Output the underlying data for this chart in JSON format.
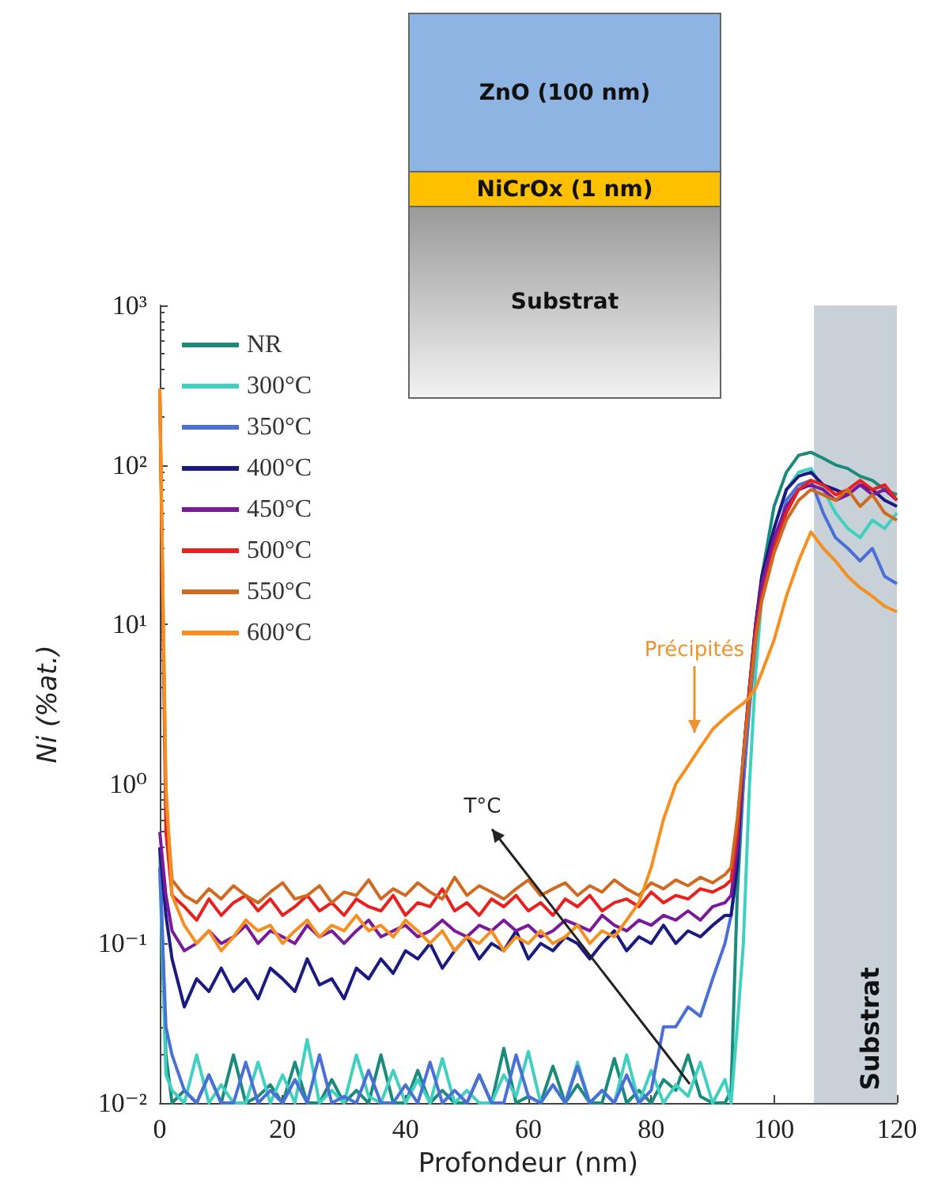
{
  "chart_data": {
    "type": "line",
    "xlabel": "Profondeur (nm)",
    "ylabel": "Ni (%at.)",
    "log": "y",
    "legend": "top left",
    "marker": "none",
    "grid": false,
    "xlim": [
      0,
      120
    ],
    "xticks": [
      0,
      20,
      40,
      60,
      80,
      100,
      120
    ],
    "ylim": [
      0.01,
      1000
    ],
    "yticks": [
      {
        "value": 0.01,
        "label": "10⁻²"
      },
      {
        "value": 0.1,
        "label": "10⁻¹"
      },
      {
        "value": 1,
        "label": "10⁰"
      },
      {
        "value": 10,
        "label": "10¹"
      },
      {
        "value": 100,
        "label": "10²"
      },
      {
        "value": 1000,
        "label": "10³"
      }
    ],
    "x": [
      0,
      1,
      2,
      4,
      6,
      8,
      10,
      12,
      14,
      16,
      18,
      20,
      22,
      24,
      26,
      28,
      30,
      32,
      34,
      36,
      38,
      40,
      42,
      44,
      46,
      48,
      50,
      52,
      54,
      56,
      58,
      60,
      62,
      64,
      66,
      68,
      70,
      72,
      74,
      76,
      78,
      80,
      82,
      84,
      86,
      88,
      90,
      92,
      93,
      94,
      95,
      96,
      97,
      98,
      100,
      102,
      104,
      106,
      108,
      110,
      112,
      114,
      116,
      118,
      120
    ],
    "series": [
      {
        "name": "NR",
        "color": "#1a8a7a",
        "values": [
          0.4,
          0.02,
          0.01,
          0.012,
          0.01,
          0.015,
          0.01,
          0.02,
          0.01,
          0.011,
          0.013,
          0.01,
          0.018,
          0.01,
          0.01,
          0.014,
          0.01,
          0.012,
          0.01,
          0.02,
          0.01,
          0.01,
          0.016,
          0.01,
          0.012,
          0.01,
          0.01,
          0.015,
          0.01,
          0.022,
          0.01,
          0.011,
          0.01,
          0.017,
          0.01,
          0.013,
          0.01,
          0.01,
          0.019,
          0.01,
          0.012,
          0.01,
          0.014,
          0.012,
          0.02,
          0.011,
          0.01,
          0.01,
          0.012,
          0.2,
          1,
          4,
          10,
          20,
          55,
          90,
          115,
          120,
          110,
          100,
          95,
          85,
          80,
          70,
          65
        ]
      },
      {
        "name": "300°C",
        "color": "#40d0c0",
        "values": [
          0.3,
          0.015,
          0.012,
          0.01,
          0.02,
          0.01,
          0.013,
          0.01,
          0.01,
          0.018,
          0.01,
          0.015,
          0.01,
          0.025,
          0.01,
          0.012,
          0.01,
          0.02,
          0.011,
          0.01,
          0.016,
          0.01,
          0.014,
          0.01,
          0.019,
          0.01,
          0.012,
          0.01,
          0.01,
          0.015,
          0.011,
          0.021,
          0.01,
          0.013,
          0.01,
          0.018,
          0.01,
          0.012,
          0.01,
          0.02,
          0.01,
          0.016,
          0.01,
          0.013,
          0.011,
          0.018,
          0.01,
          0.014,
          0.01,
          0.03,
          0.1,
          1,
          5,
          15,
          40,
          70,
          90,
          95,
          70,
          50,
          40,
          35,
          45,
          40,
          50
        ]
      },
      {
        "name": "350°C",
        "color": "#4a70d8",
        "values": [
          0.3,
          0.03,
          0.02,
          0.012,
          0.01,
          0.015,
          0.01,
          0.01,
          0.018,
          0.01,
          0.012,
          0.01,
          0.014,
          0.01,
          0.02,
          0.01,
          0.011,
          0.01,
          0.016,
          0.01,
          0.01,
          0.013,
          0.01,
          0.018,
          0.01,
          0.012,
          0.01,
          0.015,
          0.01,
          0.01,
          0.02,
          0.011,
          0.01,
          0.013,
          0.01,
          0.017,
          0.01,
          0.012,
          0.01,
          0.015,
          0.01,
          0.012,
          0.03,
          0.03,
          0.04,
          0.035,
          0.06,
          0.1,
          0.15,
          0.3,
          1,
          3,
          8,
          15,
          30,
          60,
          75,
          80,
          50,
          35,
          30,
          25,
          30,
          20,
          18
        ]
      },
      {
        "name": "400°C",
        "color": "#1a1a80",
        "values": [
          0.4,
          0.15,
          0.08,
          0.04,
          0.06,
          0.05,
          0.07,
          0.05,
          0.06,
          0.045,
          0.07,
          0.06,
          0.05,
          0.08,
          0.055,
          0.06,
          0.045,
          0.07,
          0.06,
          0.08,
          0.065,
          0.09,
          0.08,
          0.1,
          0.07,
          0.09,
          0.11,
          0.08,
          0.1,
          0.09,
          0.12,
          0.08,
          0.1,
          0.09,
          0.11,
          0.1,
          0.08,
          0.1,
          0.12,
          0.09,
          0.11,
          0.1,
          0.13,
          0.1,
          0.12,
          0.11,
          0.13,
          0.15,
          0.15,
          0.3,
          1.5,
          4,
          10,
          20,
          40,
          70,
          85,
          90,
          75,
          70,
          65,
          75,
          70,
          60,
          55
        ]
      },
      {
        "name": "450°C",
        "color": "#7a1a9a",
        "values": [
          0.5,
          0.2,
          0.12,
          0.09,
          0.1,
          0.12,
          0.1,
          0.11,
          0.13,
          0.1,
          0.12,
          0.11,
          0.1,
          0.13,
          0.11,
          0.12,
          0.1,
          0.12,
          0.14,
          0.11,
          0.12,
          0.13,
          0.11,
          0.12,
          0.14,
          0.12,
          0.11,
          0.13,
          0.12,
          0.14,
          0.12,
          0.13,
          0.11,
          0.12,
          0.14,
          0.13,
          0.12,
          0.15,
          0.13,
          0.12,
          0.14,
          0.13,
          0.15,
          0.14,
          0.16,
          0.14,
          0.17,
          0.18,
          0.2,
          0.4,
          1.5,
          4,
          10,
          18,
          35,
          55,
          70,
          75,
          70,
          60,
          65,
          75,
          65,
          70,
          60
        ]
      },
      {
        "name": "500°C",
        "color": "#e82020",
        "values": [
          300,
          0.5,
          0.2,
          0.17,
          0.14,
          0.19,
          0.15,
          0.18,
          0.2,
          0.16,
          0.19,
          0.15,
          0.17,
          0.2,
          0.16,
          0.18,
          0.15,
          0.19,
          0.17,
          0.16,
          0.2,
          0.15,
          0.18,
          0.17,
          0.22,
          0.16,
          0.18,
          0.15,
          0.19,
          0.17,
          0.2,
          0.16,
          0.18,
          0.15,
          0.19,
          0.17,
          0.2,
          0.16,
          0.18,
          0.19,
          0.17,
          0.21,
          0.18,
          0.2,
          0.19,
          0.22,
          0.21,
          0.23,
          0.25,
          0.5,
          1.5,
          4,
          9,
          15,
          30,
          50,
          70,
          80,
          75,
          65,
          70,
          80,
          70,
          75,
          60
        ]
      },
      {
        "name": "550°C",
        "color": "#d06a20",
        "values": [
          300,
          0.8,
          0.25,
          0.2,
          0.18,
          0.22,
          0.19,
          0.23,
          0.2,
          0.18,
          0.21,
          0.24,
          0.19,
          0.2,
          0.23,
          0.18,
          0.21,
          0.2,
          0.25,
          0.19,
          0.22,
          0.2,
          0.24,
          0.21,
          0.19,
          0.26,
          0.2,
          0.23,
          0.21,
          0.19,
          0.22,
          0.25,
          0.2,
          0.22,
          0.24,
          0.2,
          0.23,
          0.21,
          0.25,
          0.22,
          0.2,
          0.24,
          0.22,
          0.25,
          0.23,
          0.26,
          0.24,
          0.27,
          0.3,
          0.6,
          1.5,
          3.5,
          8,
          14,
          28,
          45,
          60,
          70,
          65,
          60,
          70,
          55,
          65,
          50,
          45
        ]
      },
      {
        "name": "600°C",
        "color": "#f59020",
        "values": [
          300,
          1,
          0.2,
          0.13,
          0.1,
          0.12,
          0.09,
          0.11,
          0.14,
          0.12,
          0.13,
          0.1,
          0.12,
          0.14,
          0.11,
          0.13,
          0.12,
          0.15,
          0.12,
          0.13,
          0.11,
          0.14,
          0.12,
          0.1,
          0.12,
          0.09,
          0.11,
          0.1,
          0.12,
          0.09,
          0.11,
          0.1,
          0.12,
          0.1,
          0.11,
          0.13,
          0.1,
          0.12,
          0.11,
          0.14,
          0.18,
          0.3,
          0.6,
          1,
          1.3,
          1.7,
          2.2,
          2.6,
          2.8,
          3,
          3.2,
          3.5,
          4,
          5,
          8,
          15,
          25,
          38,
          30,
          25,
          20,
          17,
          15,
          13,
          12
        ]
      }
    ],
    "bands": [
      {
        "axis": "x",
        "from": 106.5,
        "to": 120,
        "label": "Substrat",
        "color": "#c9d1d8"
      }
    ],
    "annotations": [
      "ZnO (100 nm)",
      "NiCrOx (1 nm)",
      "Substrat",
      "Précipités",
      "T°C"
    ]
  }
}
